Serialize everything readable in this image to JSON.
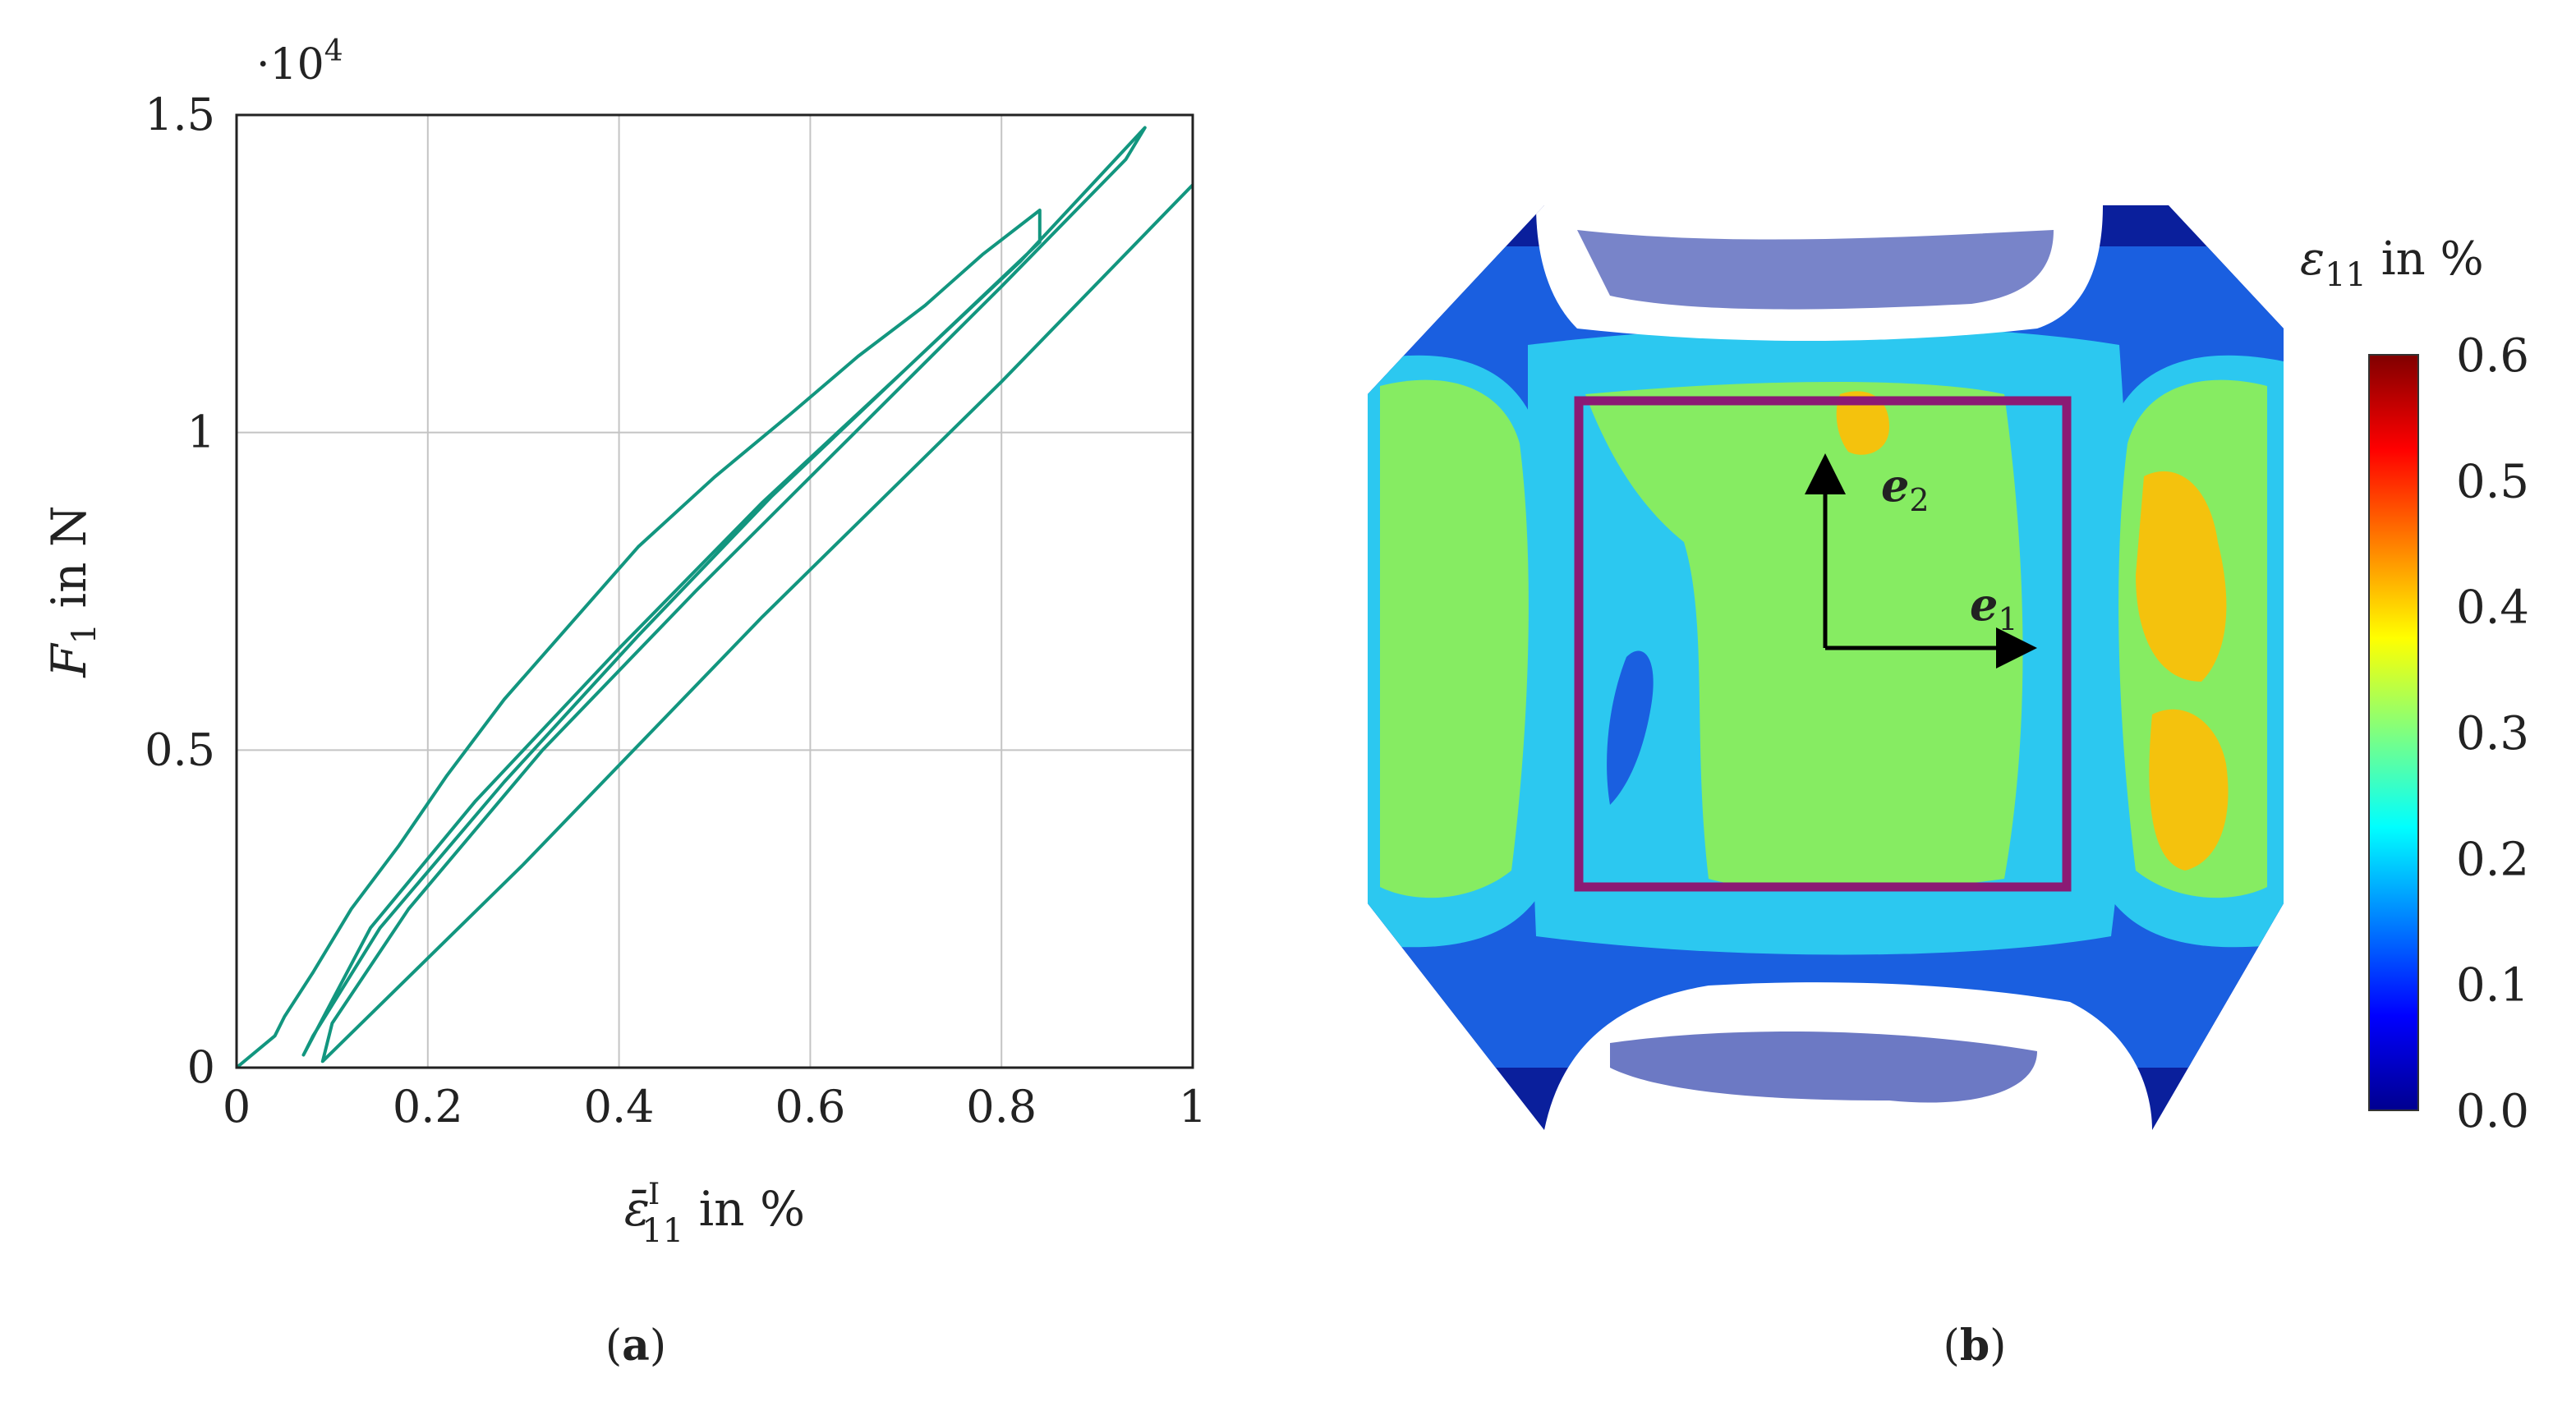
{
  "panel_a": {
    "caption_open": "(",
    "caption_letter": "a",
    "caption_close": ")",
    "multiplier": "·10",
    "multiplier_exp": "4",
    "ylabel_var": "F",
    "ylabel_sub": "1",
    "ylabel_rest": " in N",
    "xlabel_var": "ε̄",
    "xlabel_sub": "11",
    "xlabel_sup": "I",
    "xlabel_rest": " in %"
  },
  "panel_b": {
    "caption_open": "(",
    "caption_letter": "b",
    "caption_close": ")",
    "vector_e1": "e",
    "vector_e1_sub": "1",
    "vector_e2": "e",
    "vector_e2_sub": "2",
    "colorbar_title_var": "ε",
    "colorbar_title_sub": "11",
    "colorbar_title_rest": " in %",
    "colorbar_ticks": [
      "0.0",
      "0.1",
      "0.2",
      "0.3",
      "0.4",
      "0.5",
      "0.6"
    ],
    "colorbar_range": [
      0.0,
      0.6
    ]
  },
  "colors": {
    "series": "#12967f",
    "grid": "#c4c4c4",
    "box": "#8b1a74"
  },
  "chart_data": [
    {
      "type": "line",
      "xlim": [
        0,
        1
      ],
      "ylim": [
        0,
        1.5
      ],
      "xticks": [
        "0",
        "0.2",
        "0.4",
        "0.6",
        "0.8",
        "1"
      ],
      "yticks": [
        "0",
        "0.5",
        "1",
        "1.5"
      ],
      "grid": true,
      "y_scale_factor": 10000,
      "series": [
        {
          "values_description_free": true,
          "x": [
            0.0,
            0.04,
            0.05,
            0.08,
            0.12,
            0.17,
            0.22,
            0.28,
            0.35,
            0.42,
            0.5,
            0.58,
            0.65,
            0.72,
            0.78,
            0.84,
            0.84,
            0.7,
            0.56,
            0.42,
            0.28,
            0.15,
            0.08,
            0.07,
            0.14,
            0.25,
            0.4,
            0.55,
            0.7,
            0.82,
            0.95,
            0.93,
            0.8,
            0.64,
            0.48,
            0.32,
            0.18,
            0.1,
            0.09,
            0.3,
            0.55,
            0.8,
            1.0
          ],
          "y": [
            0.0,
            0.05,
            0.08,
            0.15,
            0.25,
            0.35,
            0.46,
            0.58,
            0.7,
            0.82,
            0.93,
            1.03,
            1.12,
            1.2,
            1.28,
            1.35,
            1.3,
            1.1,
            0.9,
            0.68,
            0.45,
            0.22,
            0.05,
            0.02,
            0.22,
            0.42,
            0.66,
            0.89,
            1.1,
            1.27,
            1.48,
            1.43,
            1.23,
            0.99,
            0.75,
            0.5,
            0.25,
            0.07,
            0.01,
            0.32,
            0.71,
            1.08,
            1.39
          ]
        }
      ]
    },
    {
      "type": "heatmap",
      "colorbar_range": [
        0.0,
        0.6
      ]
    }
  ]
}
